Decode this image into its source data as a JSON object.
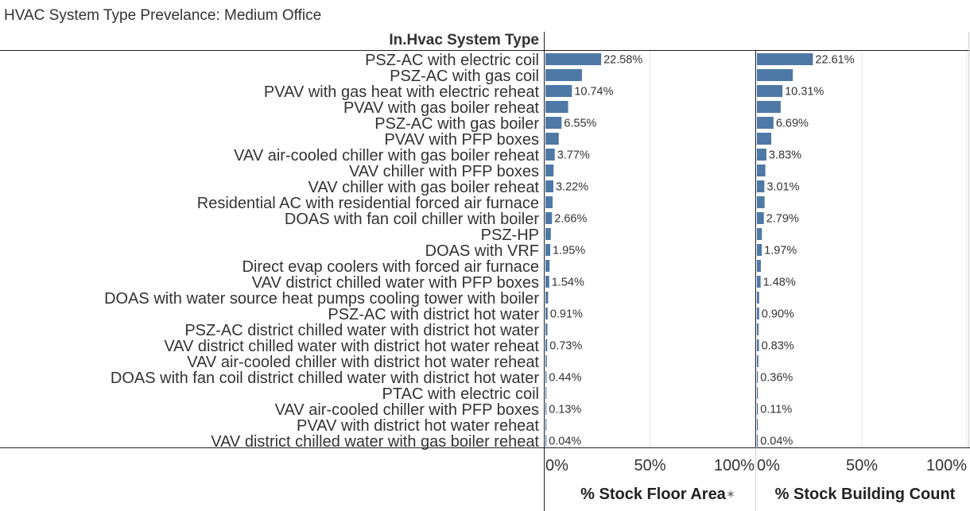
{
  "title": "HVAC System Type Prevelance: Medium Office",
  "header": {
    "dimension_label": "In.Hvac System Type"
  },
  "chart_data": {
    "type": "bar",
    "orientation": "horizontal",
    "categories": [
      "PSZ-AC with electric coil",
      "PSZ-AC with gas coil",
      "PVAV with gas heat with electric reheat",
      "PVAV with gas boiler reheat",
      "PSZ-AC with gas boiler",
      "PVAV with PFP boxes",
      "VAV air-cooled chiller with gas boiler reheat",
      "VAV chiller with PFP boxes",
      "VAV chiller with gas boiler reheat",
      "Residential AC with residential forced air furnace",
      "DOAS with fan coil chiller with boiler",
      "PSZ-HP",
      "DOAS with VRF",
      "Direct evap coolers with forced air furnace",
      "VAV district chilled water with PFP boxes",
      "DOAS with water source heat pumps cooling tower with boiler",
      "PSZ-AC with district hot water",
      "PSZ-AC district chilled water with district hot water",
      "VAV district chilled water with district hot water reheat",
      "VAV air-cooled chiller with district hot water reheat",
      "DOAS with fan coil district chilled water with district hot water",
      "PTAC with electric coil",
      "VAV air-cooled chiller with PFP boxes",
      "PVAV with district hot water reheat",
      "VAV district chilled water with gas boiler reheat"
    ],
    "series": [
      {
        "name": "% Stock Floor Area",
        "values": [
          22.58,
          14.8,
          10.74,
          9.2,
          6.55,
          5.4,
          3.77,
          3.3,
          3.22,
          2.9,
          2.66,
          2.2,
          1.95,
          1.7,
          1.54,
          1.1,
          0.91,
          0.8,
          0.73,
          0.55,
          0.44,
          0.3,
          0.13,
          0.08,
          0.04
        ],
        "labels": [
          "22.58%",
          "",
          "10.74%",
          "",
          "6.55%",
          "",
          "3.77%",
          "",
          "3.22%",
          "",
          "2.66%",
          "",
          "1.95%",
          "",
          "1.54%",
          "",
          "0.91%",
          "",
          "0.73%",
          "",
          "0.44%",
          "",
          "0.13%",
          "",
          "0.04%"
        ],
        "pinned": true
      },
      {
        "name": "% Stock Building Count",
        "values": [
          22.61,
          14.5,
          10.31,
          9.6,
          6.69,
          5.8,
          3.83,
          3.4,
          3.01,
          3.1,
          2.79,
          2.0,
          1.97,
          1.6,
          1.48,
          0.9,
          0.9,
          0.7,
          0.83,
          0.6,
          0.36,
          0.25,
          0.11,
          0.07,
          0.04
        ],
        "labels": [
          "22.61%",
          "",
          "10.31%",
          "",
          "6.69%",
          "",
          "3.83%",
          "",
          "3.01%",
          "",
          "2.79%",
          "",
          "1.97%",
          "",
          "1.48%",
          "",
          "0.90%",
          "",
          "0.83%",
          "",
          "0.36%",
          "",
          "0.11%",
          "",
          "0.04%"
        ]
      }
    ],
    "xlim": [
      0,
      100
    ],
    "xticks": [
      "0%",
      "50%",
      "100%"
    ],
    "bar_color": "#4e79a7",
    "grid": true
  }
}
